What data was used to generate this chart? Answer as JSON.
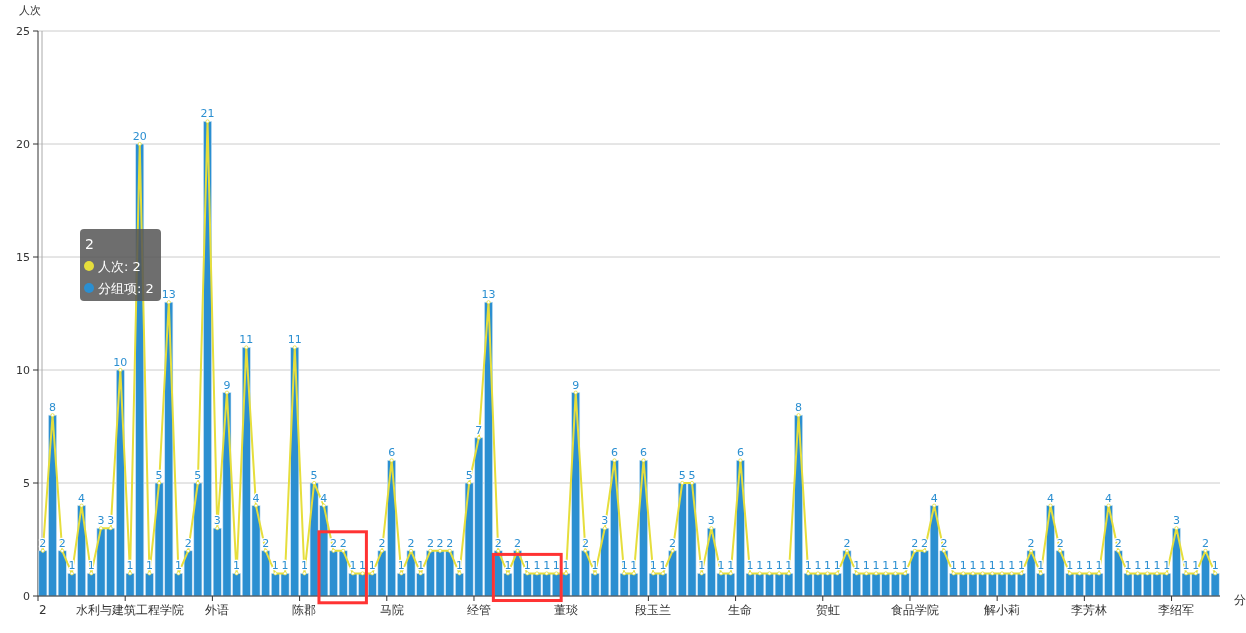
{
  "chart_data": {
    "type": "bar",
    "xlabel": "分",
    "ylabel": "人次",
    "categories": [
      "2",
      null,
      null,
      null,
      null,
      null,
      null,
      null,
      null,
      "水利与建筑工程学院",
      null,
      null,
      null,
      null,
      null,
      null,
      null,
      null,
      "外语",
      null,
      null,
      null,
      null,
      null,
      null,
      null,
      null,
      "陈郡",
      null,
      null,
      null,
      null,
      null,
      null,
      null,
      null,
      "马院",
      null,
      null,
      null,
      null,
      null,
      null,
      null,
      null,
      "经管",
      null,
      null,
      null,
      null,
      null,
      null,
      null,
      null,
      "董琰",
      null,
      null,
      null,
      null,
      null,
      null,
      null,
      null,
      "段玉兰",
      null,
      null,
      null,
      null,
      null,
      null,
      null,
      null,
      "生命",
      null,
      null,
      null,
      null,
      null,
      null,
      null,
      null,
      "贺虹",
      null,
      null,
      null,
      null,
      null,
      null,
      null,
      null,
      "食品学院",
      null,
      null,
      null,
      null,
      null,
      null,
      null,
      null,
      "解小莉",
      null,
      null,
      null,
      null,
      null,
      null,
      null,
      null,
      "李芳林",
      null,
      null,
      null,
      null,
      null,
      null,
      null,
      null,
      "李绍军",
      null,
      null,
      null,
      null
    ],
    "series": [
      {
        "name": "分组项",
        "color": "#2b8fd1",
        "values": [
          2,
          8,
          2,
          1,
          4,
          1,
          3,
          3,
          10,
          1,
          20,
          1,
          5,
          13,
          1,
          2,
          5,
          21,
          3,
          9,
          1,
          11,
          4,
          2,
          1,
          1,
          11,
          1,
          5,
          4,
          2,
          2,
          1,
          1,
          1,
          2,
          6,
          1,
          2,
          1,
          2,
          2,
          2,
          1,
          5,
          7,
          13,
          2,
          1,
          2,
          1,
          1,
          1,
          1,
          1,
          9,
          2,
          1,
          3,
          6,
          1,
          1,
          6,
          1,
          1,
          2,
          5,
          5,
          1,
          3,
          1,
          1,
          6,
          1,
          1,
          1,
          1,
          1,
          8,
          1,
          1,
          1,
          1,
          2,
          1,
          1,
          1,
          1,
          1,
          1,
          2,
          2,
          4,
          2,
          1,
          1,
          1,
          1,
          1,
          1,
          1,
          1,
          2,
          1,
          4,
          2,
          1,
          1,
          1,
          1,
          4,
          2,
          1,
          1,
          1,
          1,
          1,
          3,
          1,
          1,
          2,
          1
        ],
        "value_labels": [
          "2",
          "8",
          "2",
          "1",
          "4",
          "1",
          "3",
          "3",
          "10",
          "1",
          "20",
          "1",
          "5",
          "13",
          "1",
          "2",
          "5",
          "21",
          "3",
          "9",
          "1",
          "11",
          "4",
          "2",
          "1",
          "1",
          "11",
          "1",
          "5",
          "4",
          "2",
          "2",
          "1",
          "1",
          "1",
          "2",
          "6",
          "1",
          "2",
          "1",
          "2",
          "2",
          "2",
          "1",
          "5",
          "7",
          "13",
          "2",
          "1",
          "2",
          "1",
          "1",
          "1",
          "1",
          "1",
          "9",
          "2",
          "1",
          "3",
          "6",
          "1",
          "1",
          "6",
          "1",
          "1",
          "2",
          "5",
          "5",
          "1",
          "3",
          "1",
          "1",
          "6",
          "1",
          "1",
          "1",
          "1",
          "1",
          "8",
          "1",
          "1",
          "1",
          "1",
          "2",
          "1",
          "1",
          "1",
          "1",
          "1",
          "1",
          "2",
          "2",
          "4",
          "2",
          "1",
          "1",
          "1",
          "1",
          "1",
          "1",
          "1",
          "1",
          "2",
          "1",
          "4",
          "2",
          "1",
          "1",
          "1",
          "1",
          "4",
          "2",
          "1",
          "1",
          "1",
          "1",
          "1",
          "3",
          "1",
          "1",
          "2",
          "1"
        ]
      },
      {
        "name": "人次",
        "type": "line",
        "color": "#e6de3c",
        "marker": "circle",
        "values": [
          2,
          8,
          2,
          1,
          4,
          1,
          3,
          3,
          10,
          1,
          20,
          1,
          5,
          13,
          1,
          2,
          5,
          21,
          3,
          9,
          1,
          11,
          4,
          2,
          1,
          1,
          11,
          1,
          5,
          4,
          2,
          2,
          1,
          1,
          1,
          2,
          6,
          1,
          2,
          1,
          2,
          2,
          2,
          1,
          5,
          7,
          13,
          2,
          1,
          2,
          1,
          1,
          1,
          1,
          1,
          9,
          2,
          1,
          3,
          6,
          1,
          1,
          6,
          1,
          1,
          2,
          5,
          5,
          1,
          3,
          1,
          1,
          6,
          1,
          1,
          1,
          1,
          1,
          8,
          1,
          1,
          1,
          1,
          2,
          1,
          1,
          1,
          1,
          1,
          1,
          2,
          2,
          4,
          2,
          1,
          1,
          1,
          1,
          1,
          1,
          1,
          1,
          2,
          1,
          4,
          2,
          1,
          1,
          1,
          1,
          4,
          2,
          1,
          1,
          1,
          1,
          1,
          3,
          1,
          1,
          2,
          1
        ]
      }
    ],
    "ylim": [
      0,
      25
    ],
    "yticks": [
      0,
      5,
      10,
      15,
      20,
      25
    ],
    "grid": "y",
    "legend": "top left",
    "annotations": [
      ": 2",
      ": 2"
    ]
  }
}
